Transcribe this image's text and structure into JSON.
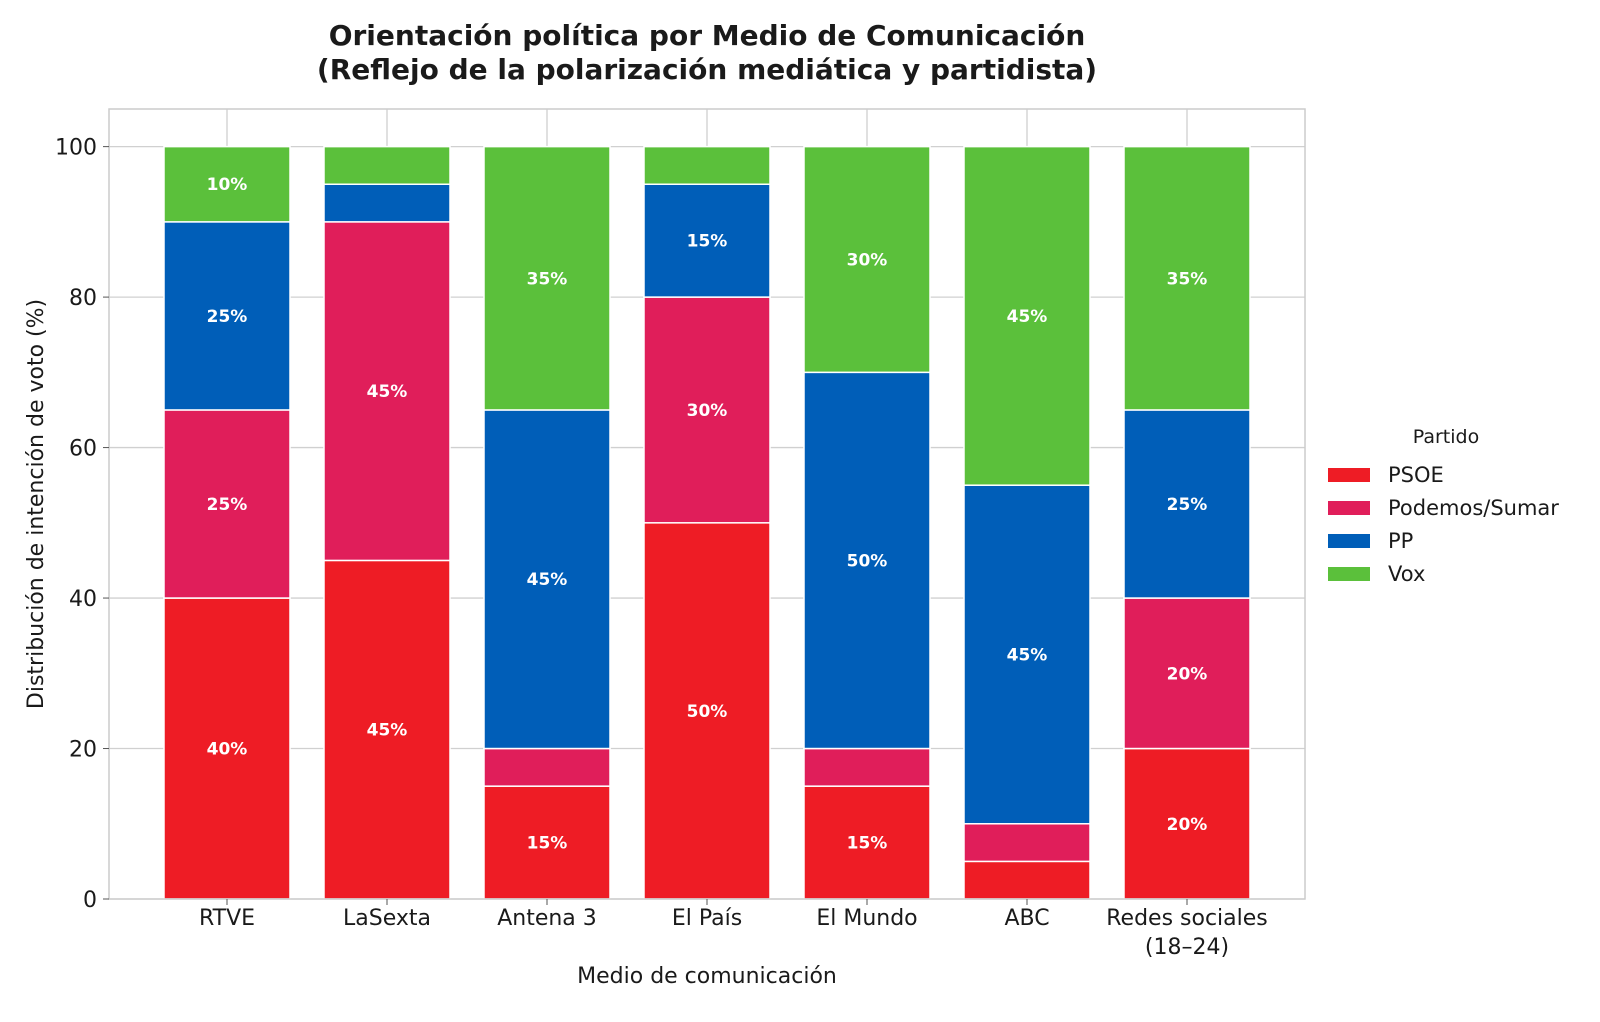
{
  "chart_data": {
    "type": "bar",
    "stacked": true,
    "title": "Orientación política por Medio de Comunicación",
    "subtitle": "(Reflejo de la polarización mediática y partidista)",
    "xlabel": "Medio de comunicación",
    "ylabel": "Distribución de intención de voto (%)",
    "ylim": [
      0,
      105
    ],
    "yticks": [
      0,
      20,
      40,
      60,
      80,
      100
    ],
    "grid": true,
    "categories": [
      [
        "RTVE"
      ],
      [
        "LaSexta"
      ],
      [
        "Antena 3"
      ],
      [
        "El País"
      ],
      [
        "El Mundo"
      ],
      [
        "ABC"
      ],
      [
        "Redes sociales",
        "(18–24)"
      ]
    ],
    "series": [
      {
        "name": "PSOE",
        "color": "#ee1c25",
        "values": [
          40,
          45,
          15,
          50,
          15,
          5,
          20
        ]
      },
      {
        "name": "Podemos/Sumar",
        "color": "#e01e5a",
        "values": [
          25,
          45,
          5,
          30,
          5,
          5,
          20
        ]
      },
      {
        "name": "PP",
        "color": "#005eb8",
        "values": [
          25,
          5,
          45,
          15,
          50,
          45,
          25
        ]
      },
      {
        "name": "Vox",
        "color": "#5bc03b",
        "values": [
          10,
          5,
          35,
          5,
          30,
          45,
          35
        ]
      }
    ],
    "data_labels": {
      "suffix": "%",
      "min_value_shown": 10
    },
    "legend": {
      "title": "Partido",
      "placement": "right"
    }
  }
}
